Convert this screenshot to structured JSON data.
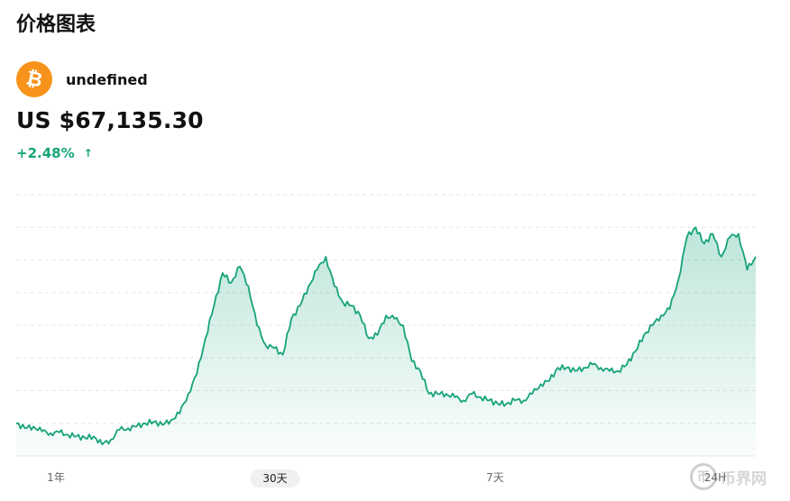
{
  "header": {
    "title": "价格图表"
  },
  "coin": {
    "name": "undefined",
    "logo_icon": "bitcoin-icon",
    "logo_glyph": "₿",
    "logo_color": "#f7931a"
  },
  "price": {
    "value": "US $67,135.30"
  },
  "change": {
    "value": "+2.48%",
    "arrow": "↑",
    "color": "#16a37a"
  },
  "ranges": [
    {
      "label": "1年",
      "active": false
    },
    {
      "label": "30天",
      "active": true
    },
    {
      "label": "7天",
      "active": false
    },
    {
      "label": "24H",
      "active": false
    }
  ],
  "watermark": {
    "badge": "币",
    "text": "币界网"
  },
  "chart_data": {
    "type": "area",
    "title": "",
    "xlabel": "",
    "ylabel": "",
    "grid": true,
    "legend": "none",
    "ylim": [
      0,
      8
    ],
    "line_color": "#16a37a",
    "fill_color": "#16a37a",
    "series": [
      {
        "values": [
          1.0,
          0.85,
          0.9,
          0.75,
          0.7,
          0.72,
          0.65,
          0.6,
          0.55,
          0.6,
          0.35,
          0.5,
          0.8,
          0.85,
          0.9,
          1.0,
          1.05,
          0.95,
          1.1,
          1.3,
          1.9,
          2.5,
          3.6,
          4.6,
          5.6,
          5.3,
          5.8,
          5.2,
          4.0,
          3.4,
          3.3,
          3.1,
          4.2,
          4.6,
          5.2,
          5.7,
          6.1,
          5.2,
          4.7,
          4.6,
          4.3,
          3.6,
          3.7,
          4.3,
          4.2,
          4.0,
          2.9,
          2.6,
          1.9,
          1.9,
          1.9,
          1.8,
          1.7,
          1.9,
          1.8,
          1.7,
          1.6,
          1.6,
          1.7,
          1.7,
          1.9,
          2.2,
          2.3,
          2.7,
          2.7,
          2.6,
          2.7,
          2.8,
          2.7,
          2.6,
          2.6,
          2.8,
          3.2,
          3.7,
          4.0,
          4.3,
          4.5,
          5.4,
          6.7,
          7.0,
          6.5,
          6.8,
          6.1,
          6.7,
          6.8,
          5.7,
          6.1
        ]
      }
    ]
  }
}
